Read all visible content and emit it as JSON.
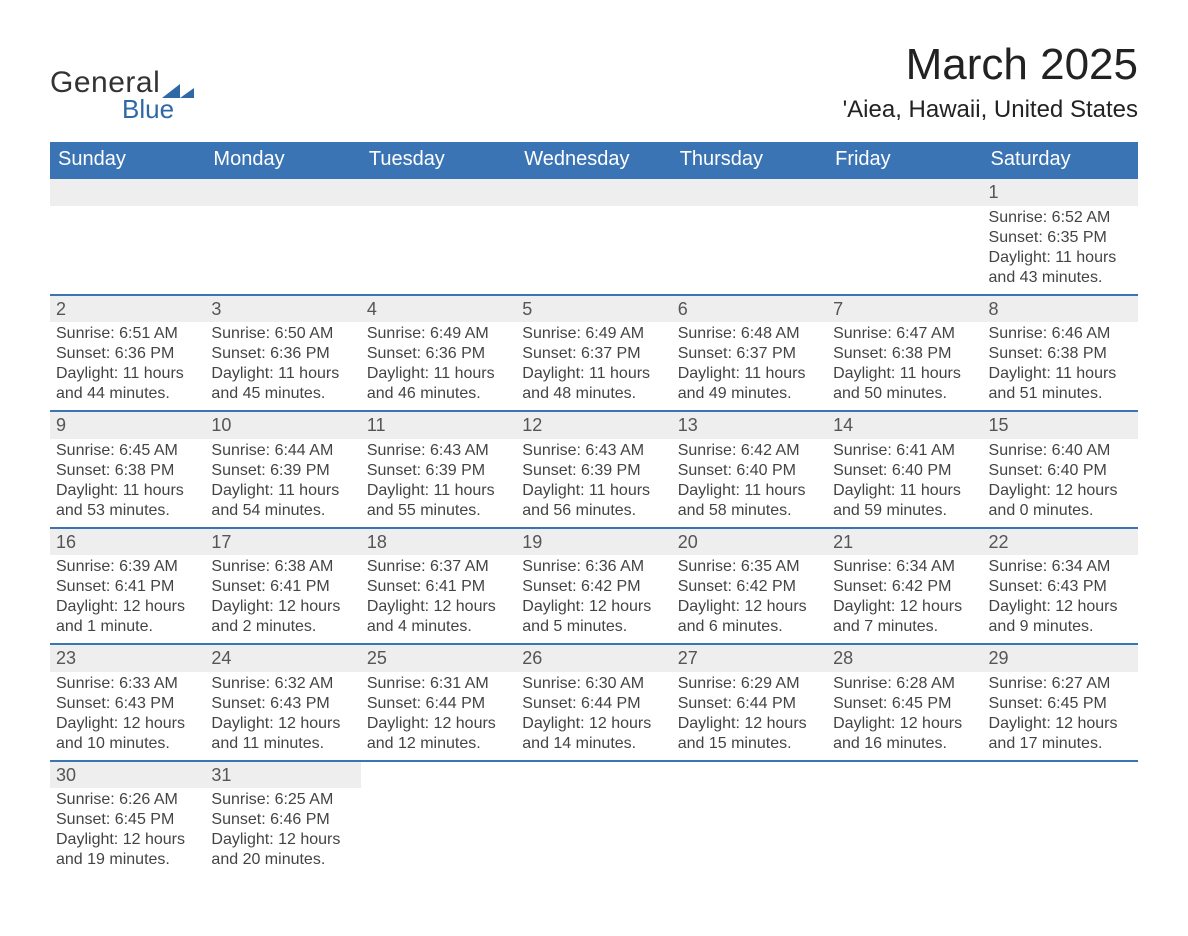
{
  "logo": {
    "text_general": "General",
    "text_blue": "Blue",
    "mark_color": "#2f68a7"
  },
  "header": {
    "title": "March 2025",
    "location": "'Aiea, Hawaii, United States"
  },
  "colors": {
    "header_bg": "#3a74b4",
    "header_text": "#ffffff",
    "daynum_bg": "#eeeeee",
    "row_border": "#3a74b4",
    "body_text": "#444444"
  },
  "weekdays": [
    "Sunday",
    "Monday",
    "Tuesday",
    "Wednesday",
    "Thursday",
    "Friday",
    "Saturday"
  ],
  "weeks": [
    [
      null,
      null,
      null,
      null,
      null,
      null,
      {
        "n": "1",
        "sunrise": "Sunrise: 6:52 AM",
        "sunset": "Sunset: 6:35 PM",
        "daylight": "Daylight: 11 hours and 43 minutes."
      }
    ],
    [
      {
        "n": "2",
        "sunrise": "Sunrise: 6:51 AM",
        "sunset": "Sunset: 6:36 PM",
        "daylight": "Daylight: 11 hours and 44 minutes."
      },
      {
        "n": "3",
        "sunrise": "Sunrise: 6:50 AM",
        "sunset": "Sunset: 6:36 PM",
        "daylight": "Daylight: 11 hours and 45 minutes."
      },
      {
        "n": "4",
        "sunrise": "Sunrise: 6:49 AM",
        "sunset": "Sunset: 6:36 PM",
        "daylight": "Daylight: 11 hours and 46 minutes."
      },
      {
        "n": "5",
        "sunrise": "Sunrise: 6:49 AM",
        "sunset": "Sunset: 6:37 PM",
        "daylight": "Daylight: 11 hours and 48 minutes."
      },
      {
        "n": "6",
        "sunrise": "Sunrise: 6:48 AM",
        "sunset": "Sunset: 6:37 PM",
        "daylight": "Daylight: 11 hours and 49 minutes."
      },
      {
        "n": "7",
        "sunrise": "Sunrise: 6:47 AM",
        "sunset": "Sunset: 6:38 PM",
        "daylight": "Daylight: 11 hours and 50 minutes."
      },
      {
        "n": "8",
        "sunrise": "Sunrise: 6:46 AM",
        "sunset": "Sunset: 6:38 PM",
        "daylight": "Daylight: 11 hours and 51 minutes."
      }
    ],
    [
      {
        "n": "9",
        "sunrise": "Sunrise: 6:45 AM",
        "sunset": "Sunset: 6:38 PM",
        "daylight": "Daylight: 11 hours and 53 minutes."
      },
      {
        "n": "10",
        "sunrise": "Sunrise: 6:44 AM",
        "sunset": "Sunset: 6:39 PM",
        "daylight": "Daylight: 11 hours and 54 minutes."
      },
      {
        "n": "11",
        "sunrise": "Sunrise: 6:43 AM",
        "sunset": "Sunset: 6:39 PM",
        "daylight": "Daylight: 11 hours and 55 minutes."
      },
      {
        "n": "12",
        "sunrise": "Sunrise: 6:43 AM",
        "sunset": "Sunset: 6:39 PM",
        "daylight": "Daylight: 11 hours and 56 minutes."
      },
      {
        "n": "13",
        "sunrise": "Sunrise: 6:42 AM",
        "sunset": "Sunset: 6:40 PM",
        "daylight": "Daylight: 11 hours and 58 minutes."
      },
      {
        "n": "14",
        "sunrise": "Sunrise: 6:41 AM",
        "sunset": "Sunset: 6:40 PM",
        "daylight": "Daylight: 11 hours and 59 minutes."
      },
      {
        "n": "15",
        "sunrise": "Sunrise: 6:40 AM",
        "sunset": "Sunset: 6:40 PM",
        "daylight": "Daylight: 12 hours and 0 minutes."
      }
    ],
    [
      {
        "n": "16",
        "sunrise": "Sunrise: 6:39 AM",
        "sunset": "Sunset: 6:41 PM",
        "daylight": "Daylight: 12 hours and 1 minute."
      },
      {
        "n": "17",
        "sunrise": "Sunrise: 6:38 AM",
        "sunset": "Sunset: 6:41 PM",
        "daylight": "Daylight: 12 hours and 2 minutes."
      },
      {
        "n": "18",
        "sunrise": "Sunrise: 6:37 AM",
        "sunset": "Sunset: 6:41 PM",
        "daylight": "Daylight: 12 hours and 4 minutes."
      },
      {
        "n": "19",
        "sunrise": "Sunrise: 6:36 AM",
        "sunset": "Sunset: 6:42 PM",
        "daylight": "Daylight: 12 hours and 5 minutes."
      },
      {
        "n": "20",
        "sunrise": "Sunrise: 6:35 AM",
        "sunset": "Sunset: 6:42 PM",
        "daylight": "Daylight: 12 hours and 6 minutes."
      },
      {
        "n": "21",
        "sunrise": "Sunrise: 6:34 AM",
        "sunset": "Sunset: 6:42 PM",
        "daylight": "Daylight: 12 hours and 7 minutes."
      },
      {
        "n": "22",
        "sunrise": "Sunrise: 6:34 AM",
        "sunset": "Sunset: 6:43 PM",
        "daylight": "Daylight: 12 hours and 9 minutes."
      }
    ],
    [
      {
        "n": "23",
        "sunrise": "Sunrise: 6:33 AM",
        "sunset": "Sunset: 6:43 PM",
        "daylight": "Daylight: 12 hours and 10 minutes."
      },
      {
        "n": "24",
        "sunrise": "Sunrise: 6:32 AM",
        "sunset": "Sunset: 6:43 PM",
        "daylight": "Daylight: 12 hours and 11 minutes."
      },
      {
        "n": "25",
        "sunrise": "Sunrise: 6:31 AM",
        "sunset": "Sunset: 6:44 PM",
        "daylight": "Daylight: 12 hours and 12 minutes."
      },
      {
        "n": "26",
        "sunrise": "Sunrise: 6:30 AM",
        "sunset": "Sunset: 6:44 PM",
        "daylight": "Daylight: 12 hours and 14 minutes."
      },
      {
        "n": "27",
        "sunrise": "Sunrise: 6:29 AM",
        "sunset": "Sunset: 6:44 PM",
        "daylight": "Daylight: 12 hours and 15 minutes."
      },
      {
        "n": "28",
        "sunrise": "Sunrise: 6:28 AM",
        "sunset": "Sunset: 6:45 PM",
        "daylight": "Daylight: 12 hours and 16 minutes."
      },
      {
        "n": "29",
        "sunrise": "Sunrise: 6:27 AM",
        "sunset": "Sunset: 6:45 PM",
        "daylight": "Daylight: 12 hours and 17 minutes."
      }
    ],
    [
      {
        "n": "30",
        "sunrise": "Sunrise: 6:26 AM",
        "sunset": "Sunset: 6:45 PM",
        "daylight": "Daylight: 12 hours and 19 minutes."
      },
      {
        "n": "31",
        "sunrise": "Sunrise: 6:25 AM",
        "sunset": "Sunset: 6:46 PM",
        "daylight": "Daylight: 12 hours and 20 minutes."
      },
      null,
      null,
      null,
      null,
      null
    ]
  ]
}
